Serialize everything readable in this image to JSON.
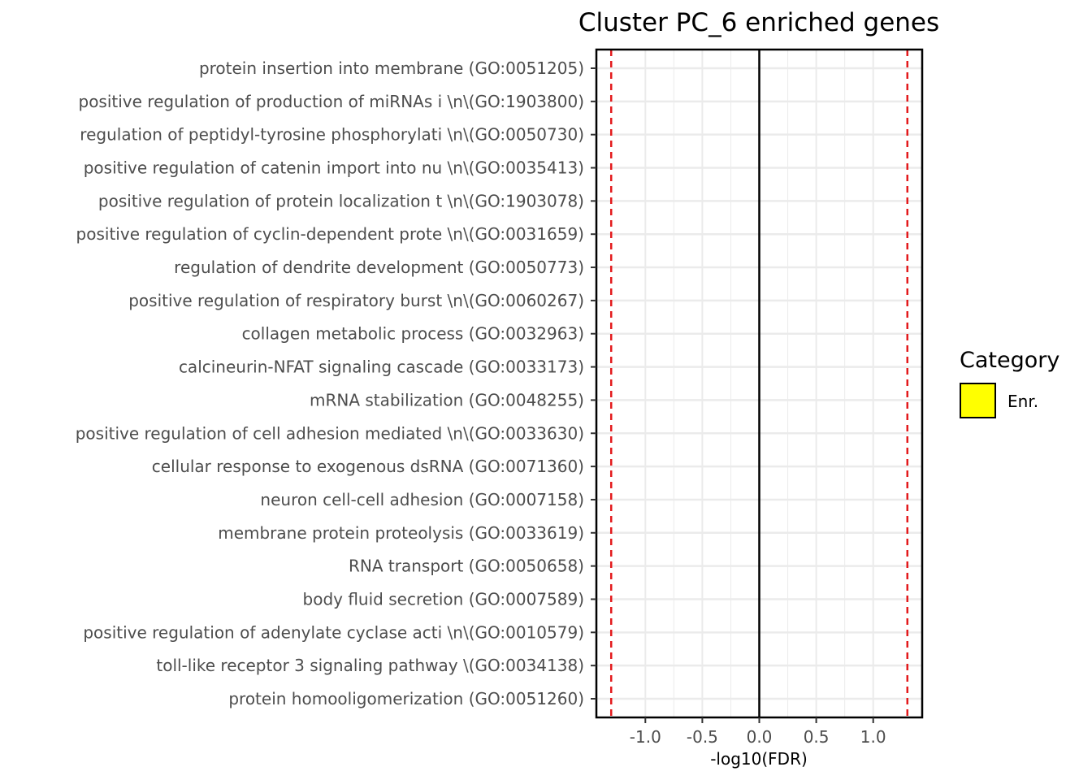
{
  "chart_data": {
    "type": "bar",
    "orientation": "horizontal",
    "title": "Cluster PC_6 enriched genes",
    "xlabel": "-log10(FDR)",
    "ylabel": "",
    "xlim": [
      -1.43,
      1.43
    ],
    "x_ticks": [
      -1.0,
      -0.5,
      0.0,
      0.5,
      1.0
    ],
    "x_tick_labels": [
      "-1.0",
      "-0.5",
      "0.0",
      "0.5",
      "1.0"
    ],
    "reference_lines": [
      {
        "x": -1.3,
        "style": "dashed",
        "color": "#e31a1c"
      },
      {
        "x": 0,
        "style": "solid",
        "color": "#000000"
      },
      {
        "x": 1.3,
        "style": "dashed",
        "color": "#e31a1c"
      }
    ],
    "grid": true,
    "legend": {
      "title": "Category",
      "position": "right",
      "entries": [
        {
          "label": "Enr.",
          "color": "#ffff00"
        }
      ]
    },
    "categories": [
      "protein insertion into membrane (GO:0051205)",
      "positive regulation of production of miRNAs i \\n\\(GO:1903800)",
      "regulation of peptidyl-tyrosine phosphorylati \\n\\(GO:0050730)",
      "positive regulation of catenin import into nu \\n\\(GO:0035413)",
      "positive regulation of protein localization t \\n\\(GO:1903078)",
      "positive regulation of cyclin-dependent prote \\n\\(GO:0031659)",
      "regulation of dendrite development (GO:0050773)",
      "positive regulation of respiratory burst  \\n\\(GO:0060267)",
      "collagen metabolic process (GO:0032963)",
      "calcineurin-NFAT signaling cascade (GO:0033173)",
      "mRNA stabilization (GO:0048255)",
      "positive regulation of cell adhesion mediated \\n\\(GO:0033630)",
      "cellular response to exogenous dsRNA (GO:0071360)",
      "neuron cell-cell adhesion (GO:0007158)",
      "membrane protein proteolysis (GO:0033619)",
      "RNA transport (GO:0050658)",
      "body fluid secretion (GO:0007589)",
      "positive regulation of adenylate cyclase acti \\n\\(GO:0010579)",
      "toll-like receptor 3 signaling pathway  \\(GO:0034138)",
      "protein homooligomerization (GO:0051260)"
    ],
    "series": [
      {
        "name": "Enr.",
        "color": "#ffff00",
        "values": [
          0,
          0,
          0,
          0,
          0,
          0,
          0,
          0,
          0,
          0,
          0,
          0,
          0,
          0,
          0,
          0,
          0,
          0,
          0,
          0
        ]
      }
    ]
  }
}
